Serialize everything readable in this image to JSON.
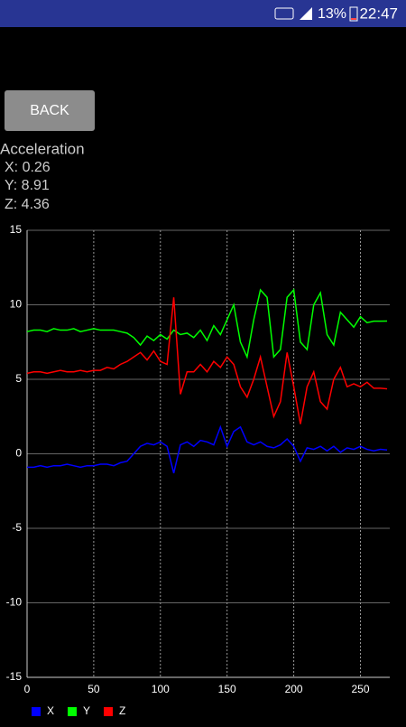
{
  "status_bar": {
    "battery": "13%",
    "time": "22:47"
  },
  "back_button": "BACK",
  "readout": {
    "title": "Acceleration",
    "lines": [
      "X: 0.26",
      "Y: 8.91",
      "Z: 4.36"
    ]
  },
  "chart_data": {
    "type": "line",
    "x": [
      0,
      5,
      10,
      15,
      20,
      25,
      30,
      35,
      40,
      45,
      50,
      55,
      60,
      65,
      70,
      75,
      80,
      85,
      90,
      95,
      100,
      105,
      110,
      115,
      120,
      125,
      130,
      135,
      140,
      145,
      150,
      155,
      160,
      165,
      170,
      175,
      180,
      185,
      190,
      195,
      200,
      205,
      210,
      215,
      220,
      225,
      230,
      235,
      240,
      245,
      250,
      255,
      260,
      265,
      270
    ],
    "series": [
      {
        "name": "X",
        "color": "#0000ff",
        "values": [
          -0.9,
          -0.9,
          -0.8,
          -0.9,
          -0.8,
          -0.8,
          -0.7,
          -0.8,
          -0.9,
          -0.8,
          -0.8,
          -0.7,
          -0.7,
          -0.8,
          -0.6,
          -0.5,
          0.0,
          0.5,
          0.7,
          0.6,
          0.8,
          0.5,
          -1.3,
          0.6,
          0.8,
          0.5,
          0.9,
          0.8,
          0.6,
          1.8,
          0.5,
          1.5,
          1.8,
          0.8,
          0.6,
          0.8,
          0.5,
          0.4,
          0.6,
          1.0,
          0.5,
          -0.5,
          0.4,
          0.3,
          0.5,
          0.2,
          0.5,
          0.1,
          0.4,
          0.3,
          0.5,
          0.3,
          0.2,
          0.3,
          0.26
        ]
      },
      {
        "name": "Y",
        "color": "#00ff00",
        "values": [
          8.2,
          8.3,
          8.3,
          8.2,
          8.4,
          8.3,
          8.3,
          8.4,
          8.2,
          8.3,
          8.4,
          8.3,
          8.3,
          8.3,
          8.2,
          8.1,
          7.8,
          7.3,
          7.9,
          7.6,
          8.0,
          7.7,
          8.3,
          8.0,
          8.1,
          7.8,
          8.3,
          7.6,
          8.6,
          8.0,
          9.0,
          10.0,
          7.5,
          6.5,
          9.0,
          11.0,
          10.5,
          6.5,
          7.0,
          10.5,
          11.0,
          7.5,
          7.0,
          10.0,
          10.8,
          8.0,
          7.3,
          9.5,
          9.0,
          8.5,
          9.2,
          8.8,
          8.9,
          8.9,
          8.91
        ]
      },
      {
        "name": "Z",
        "color": "#ff0000",
        "values": [
          5.4,
          5.5,
          5.5,
          5.4,
          5.5,
          5.6,
          5.5,
          5.5,
          5.6,
          5.5,
          5.6,
          5.6,
          5.8,
          5.7,
          6.0,
          6.2,
          6.5,
          6.8,
          6.3,
          6.9,
          6.2,
          6.0,
          10.5,
          4.0,
          5.5,
          5.5,
          6.0,
          5.5,
          6.2,
          5.8,
          6.5,
          6.0,
          4.5,
          3.8,
          5.0,
          6.5,
          4.5,
          2.5,
          3.5,
          6.8,
          4.5,
          2.0,
          4.5,
          5.5,
          3.5,
          3.0,
          5.0,
          5.8,
          4.5,
          4.7,
          4.5,
          4.8,
          4.4,
          4.4,
          4.36
        ]
      }
    ],
    "xlim": [
      0,
      272
    ],
    "xticks": [
      0,
      50,
      100,
      150,
      200,
      250
    ],
    "ylim": [
      -15,
      15
    ],
    "yticks": [
      -15,
      -10,
      -5,
      0,
      5,
      10,
      15
    ],
    "grid": true,
    "legend": "bottom-left"
  }
}
